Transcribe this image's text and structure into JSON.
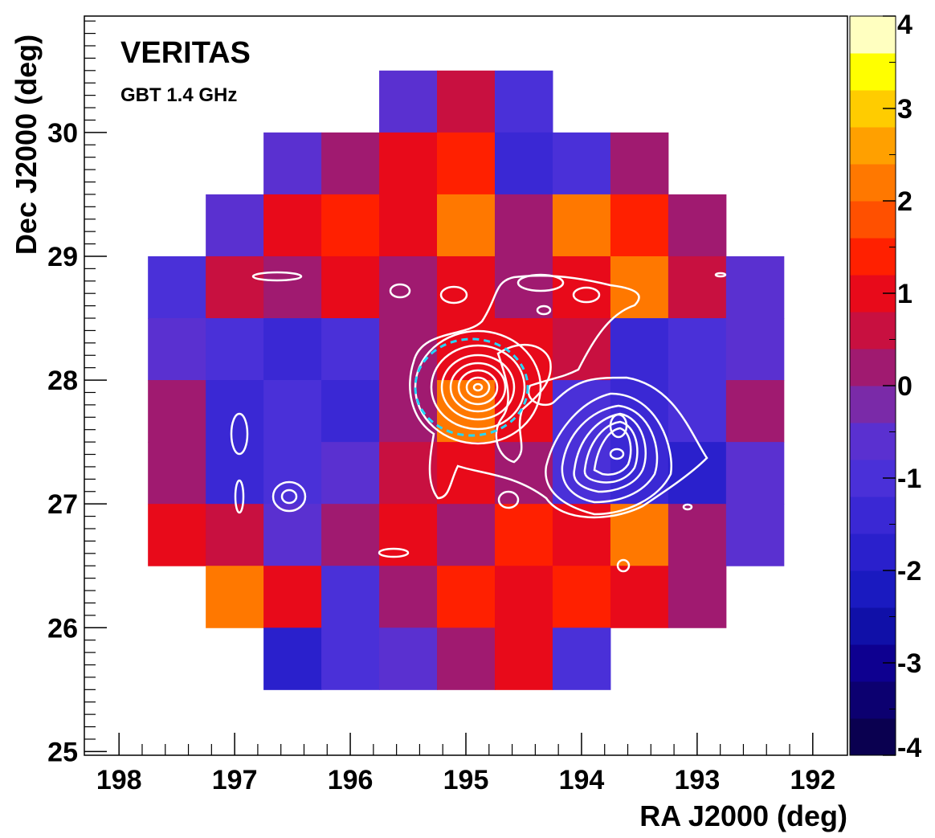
{
  "chart_data": {
    "type": "heatmap",
    "title": "VERITAS",
    "subtitle": "GBT 1.4 GHz",
    "x_label": "RA J2000 (deg)",
    "y_label": "Dec J2000 (deg)",
    "x": [
      197.5,
      197,
      196.5,
      196,
      195.5,
      195,
      194.5,
      194,
      193.5,
      193,
      192.5
    ],
    "y": [
      30.25,
      29.75,
      29.25,
      28.75,
      28.25,
      27.75,
      27.25,
      26.75,
      26.25,
      25.75
    ],
    "z": [
      [
        null,
        null,
        null,
        null,
        -0.5,
        0.5,
        -1,
        null,
        null,
        null,
        null
      ],
      [
        null,
        null,
        -0.5,
        0,
        1,
        1.5,
        -1.5,
        -1,
        0,
        null,
        null
      ],
      [
        null,
        -0.5,
        1,
        1.5,
        1,
        2,
        0,
        2,
        1.5,
        0,
        null
      ],
      [
        -1,
        0.5,
        0,
        1,
        0,
        1,
        0,
        1,
        2,
        0.5,
        -0.5
      ],
      [
        -0.5,
        -1,
        -1.5,
        -1,
        0,
        1,
        1,
        0.5,
        -1.5,
        -1,
        -0.5
      ],
      [
        0,
        -1.5,
        -1,
        -1.5,
        0,
        2,
        1,
        -1,
        -1.5,
        -1,
        0
      ],
      [
        0,
        -1.5,
        -1,
        -0.5,
        0.5,
        1,
        0,
        -1,
        -1.5,
        -2,
        -0.5
      ],
      [
        1,
        0.5,
        -0.5,
        0,
        1,
        0,
        1.5,
        1,
        2,
        0,
        -0.5
      ],
      [
        null,
        2,
        1,
        -1,
        0,
        1.5,
        1,
        1.5,
        1,
        0,
        null
      ],
      [
        null,
        null,
        -2,
        -1,
        -0.5,
        0,
        1,
        -1,
        null,
        null,
        null
      ]
    ],
    "xlim": [
      198.3,
      191.7
    ],
    "ylim": [
      24.97,
      30.94
    ],
    "xticks": [
      198,
      197,
      196,
      195,
      194,
      193,
      192
    ],
    "yticks": [
      25,
      26,
      27,
      28,
      29,
      30
    ],
    "zlim": [
      -4,
      4
    ],
    "zticks": [
      -4,
      -3,
      -2,
      -1,
      0,
      1,
      2,
      3,
      4
    ],
    "colorscale": [
      "#0a0050",
      "#0c0070",
      "#0e0090",
      "#1010a8",
      "#1a1ac0",
      "#2a20cc",
      "#3a28d4",
      "#4a30d8",
      "#5a30d0",
      "#7a2aa8",
      "#a01a70",
      "#c81040",
      "#e80a1a",
      "#ff2000",
      "#ff5000",
      "#ff7800",
      "#ffa000",
      "#ffcc00",
      "#ffff00",
      "#ffffc0"
    ]
  }
}
